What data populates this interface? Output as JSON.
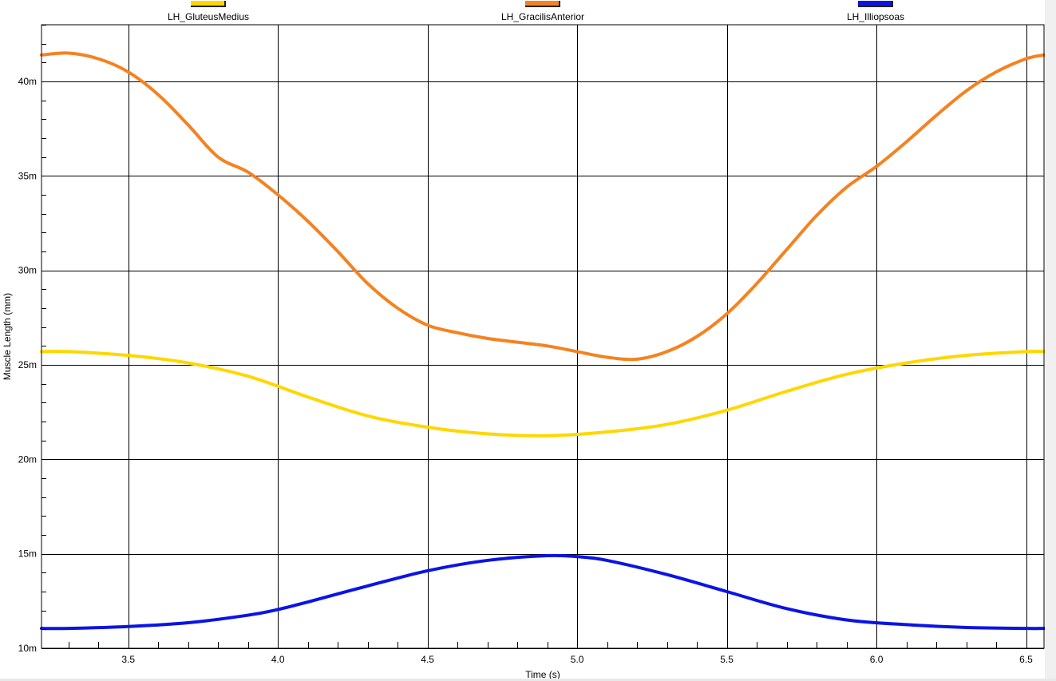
{
  "chart_data": {
    "type": "line",
    "title": "",
    "xlabel": "Time (s)",
    "ylabel": "Muscle Length (mm)",
    "xlim": [
      3.21,
      6.56
    ],
    "ylim": [
      10,
      43
    ],
    "x_ticks": [
      3.5,
      4.0,
      4.5,
      5.0,
      5.5,
      6.0,
      6.5
    ],
    "x_tick_labels": [
      "3.5",
      "4.0",
      "4.5",
      "5.0",
      "5.5",
      "6.0",
      "6.5"
    ],
    "y_ticks": [
      10,
      15,
      20,
      25,
      30,
      35,
      40
    ],
    "y_tick_labels": [
      "10m",
      "15m",
      "20m",
      "25m",
      "30m",
      "35m",
      "40m"
    ],
    "grid": true,
    "legend_position": "top",
    "series": [
      {
        "name": "LH_GluteusMedius",
        "color": "#FFD700",
        "x": [
          3.21,
          3.3,
          3.5,
          3.7,
          3.9,
          4.1,
          4.3,
          4.5,
          4.7,
          4.9,
          5.1,
          5.3,
          5.5,
          5.7,
          5.9,
          6.1,
          6.3,
          6.5,
          6.56
        ],
        "y": [
          25.7,
          25.7,
          25.5,
          25.1,
          24.4,
          23.3,
          22.3,
          21.7,
          21.35,
          21.25,
          21.45,
          21.85,
          22.6,
          23.6,
          24.5,
          25.1,
          25.5,
          25.7,
          25.7
        ]
      },
      {
        "name": "LH_GracilisAnterior",
        "color": "#F58220",
        "x": [
          3.21,
          3.3,
          3.4,
          3.5,
          3.6,
          3.7,
          3.8,
          3.9,
          4.0,
          4.1,
          4.2,
          4.3,
          4.4,
          4.5,
          4.6,
          4.7,
          4.8,
          4.9,
          5.0,
          5.1,
          5.2,
          5.3,
          5.4,
          5.5,
          5.6,
          5.7,
          5.8,
          5.9,
          6.0,
          6.1,
          6.2,
          6.3,
          6.4,
          6.5,
          6.56
        ],
        "y": [
          41.4,
          41.5,
          41.2,
          40.5,
          39.3,
          37.7,
          36.0,
          35.2,
          34.0,
          32.6,
          31.0,
          29.3,
          28.0,
          27.1,
          26.7,
          26.4,
          26.2,
          26.0,
          25.7,
          25.4,
          25.3,
          25.7,
          26.5,
          27.7,
          29.3,
          31.1,
          32.9,
          34.4,
          35.5,
          36.8,
          38.2,
          39.5,
          40.5,
          41.2,
          41.4
        ]
      },
      {
        "name": "LH_Illiopsoas",
        "color": "#0A14E6",
        "x": [
          3.21,
          3.3,
          3.5,
          3.7,
          3.9,
          4.0,
          4.1,
          4.3,
          4.5,
          4.7,
          4.9,
          5.0,
          5.1,
          5.3,
          5.5,
          5.7,
          5.9,
          6.1,
          6.3,
          6.5,
          6.56
        ],
        "y": [
          11.05,
          11.05,
          11.15,
          11.35,
          11.75,
          12.05,
          12.45,
          13.3,
          14.1,
          14.65,
          14.9,
          14.85,
          14.65,
          13.9,
          13.0,
          12.1,
          11.5,
          11.25,
          11.1,
          11.05,
          11.05
        ]
      }
    ]
  }
}
